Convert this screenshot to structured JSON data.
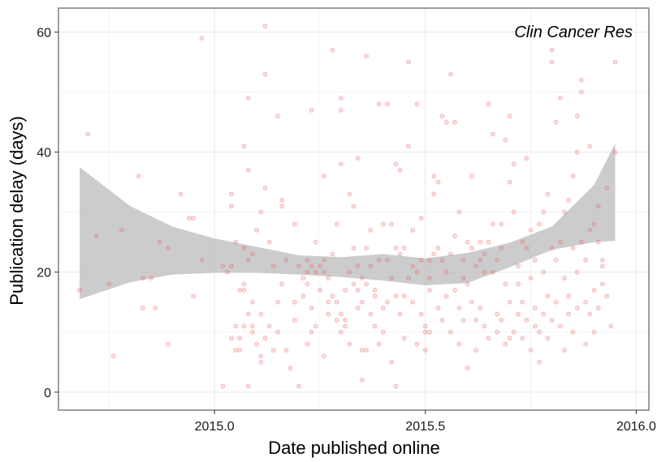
{
  "chart_data": {
    "type": "scatter",
    "title": "",
    "annotation": "Clin Cancer Res",
    "xlabel": "Date published online",
    "ylabel": "Publication delay (days)",
    "xlim": [
      2014.63,
      2016.03
    ],
    "ylim": [
      -3,
      64
    ],
    "x_ticks": [
      2015.0,
      2015.5,
      2016.0
    ],
    "x_tick_labels": [
      "2015.0",
      "2015.5",
      "2016.0"
    ],
    "y_ticks": [
      0,
      20,
      40,
      60
    ],
    "y_tick_labels": [
      "0",
      "20",
      "40",
      "60"
    ],
    "grid": true,
    "point_color": "#e8595a",
    "band_color": "#bebebe",
    "smooth": {
      "x": [
        2014.68,
        2014.8,
        2014.9,
        2015.0,
        2015.1,
        2015.2,
        2015.3,
        2015.4,
        2015.5,
        2015.6,
        2015.7,
        2015.8,
        2015.9,
        2015.95
      ],
      "lower": [
        15.5,
        18.3,
        19.6,
        19.9,
        19.9,
        19.6,
        19.2,
        18.6,
        17.8,
        18.2,
        20.8,
        23.7,
        25.0,
        25.2
      ],
      "upper": [
        37.5,
        31.0,
        27.6,
        25.6,
        24.2,
        22.8,
        22.5,
        23.0,
        22.3,
        23.2,
        24.9,
        27.6,
        34.5,
        41.5
      ]
    },
    "points": [
      [
        2014.68,
        17
      ],
      [
        2014.7,
        43
      ],
      [
        2014.72,
        26
      ],
      [
        2014.75,
        18
      ],
      [
        2014.76,
        6
      ],
      [
        2014.78,
        27
      ],
      [
        2014.82,
        36
      ],
      [
        2014.83,
        19
      ],
      [
        2014.83,
        14
      ],
      [
        2014.85,
        19
      ],
      [
        2014.86,
        14
      ],
      [
        2014.87,
        25
      ],
      [
        2014.89,
        24
      ],
      [
        2014.89,
        8
      ],
      [
        2014.92,
        33
      ],
      [
        2014.94,
        29
      ],
      [
        2014.95,
        16
      ],
      [
        2014.95,
        29
      ],
      [
        2014.97,
        59
      ],
      [
        2014.97,
        22
      ],
      [
        2015.02,
        1
      ],
      [
        2015.02,
        21
      ],
      [
        2015.03,
        20
      ],
      [
        2015.04,
        9
      ],
      [
        2015.04,
        21
      ],
      [
        2015.04,
        33
      ],
      [
        2015.04,
        31
      ],
      [
        2015.05,
        7
      ],
      [
        2015.05,
        25
      ],
      [
        2015.05,
        11
      ],
      [
        2015.06,
        7
      ],
      [
        2015.06,
        17
      ],
      [
        2015.06,
        9
      ],
      [
        2015.07,
        24
      ],
      [
        2015.07,
        11
      ],
      [
        2015.07,
        17
      ],
      [
        2015.07,
        18
      ],
      [
        2015.07,
        41
      ],
      [
        2015.08,
        49
      ],
      [
        2015.08,
        37
      ],
      [
        2015.08,
        1
      ],
      [
        2015.08,
        22
      ],
      [
        2015.08,
        13
      ],
      [
        2015.09,
        15
      ],
      [
        2015.09,
        11
      ],
      [
        2015.09,
        10
      ],
      [
        2015.09,
        23
      ],
      [
        2015.1,
        27
      ],
      [
        2015.1,
        8
      ],
      [
        2015.11,
        5
      ],
      [
        2015.11,
        13
      ],
      [
        2015.11,
        30
      ],
      [
        2015.11,
        6
      ],
      [
        2015.12,
        9
      ],
      [
        2015.12,
        34
      ],
      [
        2015.12,
        53
      ],
      [
        2015.12,
        61
      ],
      [
        2015.13,
        25
      ],
      [
        2015.13,
        11
      ],
      [
        2015.14,
        21
      ],
      [
        2015.14,
        7
      ],
      [
        2015.15,
        46
      ],
      [
        2015.15,
        10
      ],
      [
        2015.15,
        15
      ],
      [
        2015.16,
        18
      ],
      [
        2015.16,
        31
      ],
      [
        2015.16,
        32
      ],
      [
        2015.17,
        7
      ],
      [
        2015.17,
        22
      ],
      [
        2015.18,
        4
      ],
      [
        2015.19,
        12
      ],
      [
        2015.19,
        28
      ],
      [
        2015.19,
        15
      ],
      [
        2015.2,
        1
      ],
      [
        2015.2,
        21
      ],
      [
        2015.21,
        19
      ],
      [
        2015.21,
        16
      ],
      [
        2015.22,
        8
      ],
      [
        2015.22,
        20
      ],
      [
        2015.22,
        18
      ],
      [
        2015.22,
        22
      ],
      [
        2015.23,
        47
      ],
      [
        2015.23,
        10
      ],
      [
        2015.23,
        14
      ],
      [
        2015.23,
        21
      ],
      [
        2015.24,
        25
      ],
      [
        2015.24,
        20
      ],
      [
        2015.24,
        11
      ],
      [
        2015.25,
        21
      ],
      [
        2015.25,
        17
      ],
      [
        2015.26,
        36
      ],
      [
        2015.26,
        22
      ],
      [
        2015.26,
        20
      ],
      [
        2015.26,
        6
      ],
      [
        2015.27,
        19
      ],
      [
        2015.27,
        15
      ],
      [
        2015.27,
        13
      ],
      [
        2015.28,
        57
      ],
      [
        2015.28,
        23
      ],
      [
        2015.28,
        16
      ],
      [
        2015.29,
        15
      ],
      [
        2015.29,
        28
      ],
      [
        2015.29,
        12
      ],
      [
        2015.3,
        38
      ],
      [
        2015.3,
        47
      ],
      [
        2015.3,
        49
      ],
      [
        2015.3,
        13
      ],
      [
        2015.3,
        10
      ],
      [
        2015.31,
        12
      ],
      [
        2015.31,
        17
      ],
      [
        2015.31,
        11
      ],
      [
        2015.32,
        20
      ],
      [
        2015.32,
        8
      ],
      [
        2015.32,
        33
      ],
      [
        2015.33,
        18
      ],
      [
        2015.33,
        24
      ],
      [
        2015.33,
        31
      ],
      [
        2015.34,
        14
      ],
      [
        2015.34,
        21
      ],
      [
        2015.34,
        39
      ],
      [
        2015.34,
        17
      ],
      [
        2015.35,
        19
      ],
      [
        2015.35,
        7
      ],
      [
        2015.35,
        2
      ],
      [
        2015.35,
        15
      ],
      [
        2015.36,
        24
      ],
      [
        2015.36,
        18
      ],
      [
        2015.36,
        7
      ],
      [
        2015.36,
        56
      ],
      [
        2015.37,
        27
      ],
      [
        2015.37,
        21
      ],
      [
        2015.37,
        13
      ],
      [
        2015.38,
        11
      ],
      [
        2015.38,
        16
      ],
      [
        2015.38,
        17
      ],
      [
        2015.39,
        8
      ],
      [
        2015.39,
        22
      ],
      [
        2015.39,
        48
      ],
      [
        2015.4,
        28
      ],
      [
        2015.4,
        14
      ],
      [
        2015.4,
        10
      ],
      [
        2015.41,
        15
      ],
      [
        2015.41,
        22
      ],
      [
        2015.41,
        48
      ],
      [
        2015.42,
        5
      ],
      [
        2015.42,
        28
      ],
      [
        2015.42,
        19
      ],
      [
        2015.43,
        1
      ],
      [
        2015.43,
        24
      ],
      [
        2015.43,
        38
      ],
      [
        2015.43,
        16
      ],
      [
        2015.44,
        23
      ],
      [
        2015.44,
        13
      ],
      [
        2015.44,
        37
      ],
      [
        2015.45,
        9
      ],
      [
        2015.45,
        24
      ],
      [
        2015.45,
        16
      ],
      [
        2015.46,
        41
      ],
      [
        2015.46,
        55
      ],
      [
        2015.46,
        19
      ],
      [
        2015.47,
        21
      ],
      [
        2015.47,
        15
      ],
      [
        2015.47,
        27
      ],
      [
        2015.48,
        48
      ],
      [
        2015.48,
        20
      ],
      [
        2015.48,
        8
      ],
      [
        2015.49,
        22
      ],
      [
        2015.49,
        13
      ],
      [
        2015.49,
        29
      ],
      [
        2015.5,
        10
      ],
      [
        2015.5,
        11
      ],
      [
        2015.5,
        7
      ],
      [
        2015.51,
        10
      ],
      [
        2015.51,
        19
      ],
      [
        2015.51,
        22
      ],
      [
        2015.51,
        17
      ],
      [
        2015.52,
        36
      ],
      [
        2015.52,
        23
      ],
      [
        2015.52,
        33
      ],
      [
        2015.53,
        35
      ],
      [
        2015.53,
        24
      ],
      [
        2015.53,
        14
      ],
      [
        2015.54,
        12
      ],
      [
        2015.54,
        46
      ],
      [
        2015.54,
        22
      ],
      [
        2015.55,
        20
      ],
      [
        2015.55,
        16
      ],
      [
        2015.55,
        45
      ],
      [
        2015.56,
        23
      ],
      [
        2015.56,
        10
      ],
      [
        2015.56,
        53
      ],
      [
        2015.57,
        45
      ],
      [
        2015.57,
        17
      ],
      [
        2015.57,
        26
      ],
      [
        2015.58,
        8
      ],
      [
        2015.58,
        14
      ],
      [
        2015.58,
        30
      ],
      [
        2015.59,
        22
      ],
      [
        2015.59,
        12
      ],
      [
        2015.59,
        19
      ],
      [
        2015.6,
        4
      ],
      [
        2015.6,
        25
      ],
      [
        2015.6,
        18
      ],
      [
        2015.61,
        36
      ],
      [
        2015.61,
        24
      ],
      [
        2015.61,
        15
      ],
      [
        2015.62,
        21
      ],
      [
        2015.62,
        7
      ],
      [
        2015.62,
        12
      ],
      [
        2015.63,
        25
      ],
      [
        2015.63,
        14
      ],
      [
        2015.63,
        22
      ],
      [
        2015.64,
        23
      ],
      [
        2015.64,
        11
      ],
      [
        2015.64,
        20
      ],
      [
        2015.65,
        48
      ],
      [
        2015.65,
        25
      ],
      [
        2015.65,
        9
      ],
      [
        2015.66,
        28
      ],
      [
        2015.66,
        20
      ],
      [
        2015.66,
        43
      ],
      [
        2015.67,
        13
      ],
      [
        2015.67,
        10
      ],
      [
        2015.67,
        22
      ],
      [
        2015.68,
        24
      ],
      [
        2015.68,
        12
      ],
      [
        2015.68,
        28
      ],
      [
        2015.69,
        8
      ],
      [
        2015.69,
        18
      ],
      [
        2015.69,
        42
      ],
      [
        2015.7,
        15
      ],
      [
        2015.7,
        46
      ],
      [
        2015.7,
        9
      ],
      [
        2015.7,
        35
      ],
      [
        2015.71,
        10
      ],
      [
        2015.71,
        30
      ],
      [
        2015.71,
        38
      ],
      [
        2015.72,
        13
      ],
      [
        2015.72,
        21
      ],
      [
        2015.72,
        18
      ],
      [
        2015.73,
        25
      ],
      [
        2015.73,
        15
      ],
      [
        2015.73,
        9
      ],
      [
        2015.74,
        39
      ],
      [
        2015.74,
        24
      ],
      [
        2015.74,
        12
      ],
      [
        2015.75,
        7
      ],
      [
        2015.75,
        19
      ],
      [
        2015.75,
        27
      ],
      [
        2015.76,
        11
      ],
      [
        2015.76,
        22
      ],
      [
        2015.76,
        14
      ],
      [
        2015.77,
        5
      ],
      [
        2015.77,
        28
      ],
      [
        2015.77,
        10
      ],
      [
        2015.78,
        30
      ],
      [
        2015.78,
        20
      ],
      [
        2015.78,
        13
      ],
      [
        2015.79,
        9
      ],
      [
        2015.79,
        16
      ],
      [
        2015.79,
        33
      ],
      [
        2015.8,
        24
      ],
      [
        2015.8,
        12
      ],
      [
        2015.8,
        57
      ],
      [
        2015.8,
        55
      ],
      [
        2015.81,
        22
      ],
      [
        2015.81,
        45
      ],
      [
        2015.81,
        15
      ],
      [
        2015.82,
        49
      ],
      [
        2015.82,
        11
      ],
      [
        2015.82,
        25
      ],
      [
        2015.83,
        30
      ],
      [
        2015.83,
        7
      ],
      [
        2015.83,
        19
      ],
      [
        2015.84,
        13
      ],
      [
        2015.84,
        32
      ],
      [
        2015.84,
        16
      ],
      [
        2015.85,
        36
      ],
      [
        2015.85,
        10
      ],
      [
        2015.85,
        24
      ],
      [
        2015.86,
        14
      ],
      [
        2015.86,
        40
      ],
      [
        2015.86,
        46
      ],
      [
        2015.86,
        20
      ],
      [
        2015.87,
        50
      ],
      [
        2015.87,
        25
      ],
      [
        2015.87,
        52
      ],
      [
        2015.88,
        15
      ],
      [
        2015.88,
        8
      ],
      [
        2015.88,
        22
      ],
      [
        2015.89,
        41
      ],
      [
        2015.89,
        27
      ],
      [
        2015.89,
        13
      ],
      [
        2015.9,
        17
      ],
      [
        2015.9,
        10
      ],
      [
        2015.9,
        28
      ],
      [
        2015.91,
        31
      ],
      [
        2015.91,
        25
      ],
      [
        2015.91,
        14
      ],
      [
        2015.92,
        18
      ],
      [
        2015.92,
        21
      ],
      [
        2015.92,
        22
      ],
      [
        2015.93,
        16
      ],
      [
        2015.93,
        34
      ],
      [
        2015.94,
        11
      ],
      [
        2015.95,
        40
      ],
      [
        2015.95,
        55
      ]
    ]
  }
}
